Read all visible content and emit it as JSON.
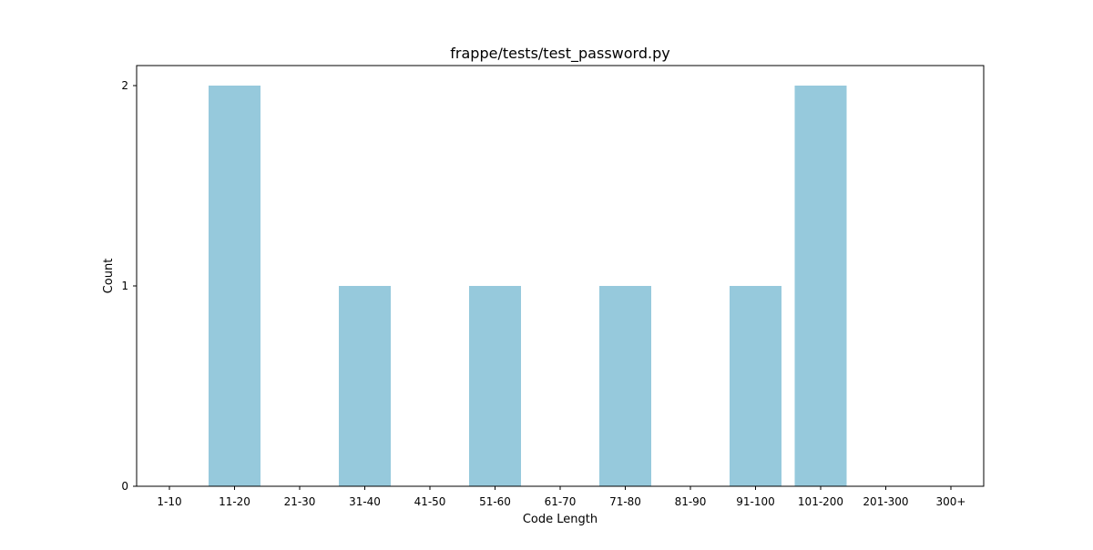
{
  "chart_data": {
    "type": "bar",
    "title": "frappe/tests/test_password.py",
    "xlabel": "Code Length",
    "ylabel": "Count",
    "categories": [
      "1-10",
      "11-20",
      "21-30",
      "31-40",
      "41-50",
      "51-60",
      "61-70",
      "71-80",
      "81-90",
      "91-100",
      "101-200",
      "201-300",
      "300+"
    ],
    "values": [
      0,
      2,
      0,
      1,
      0,
      1,
      0,
      1,
      0,
      1,
      2,
      0,
      0
    ],
    "ylim": [
      0,
      2.1
    ],
    "yticks": [
      0,
      1,
      2
    ],
    "grid": false,
    "bar_color": "#96c9dc"
  }
}
